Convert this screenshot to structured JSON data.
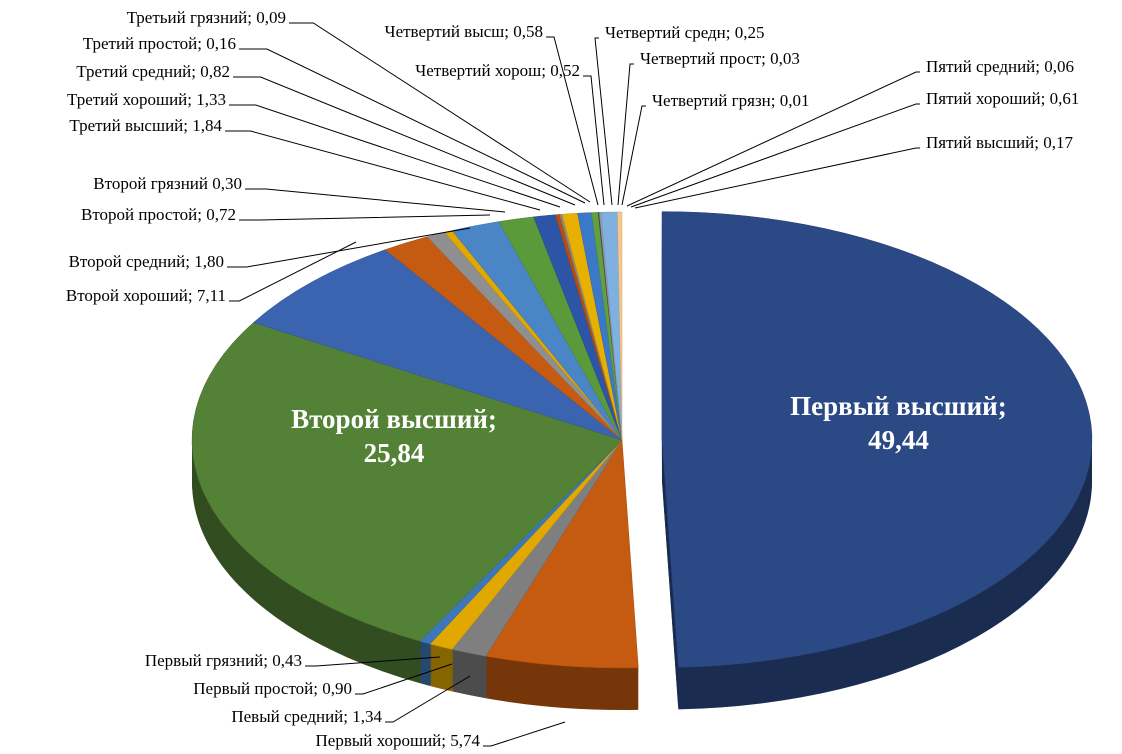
{
  "chart_data": {
    "type": "pie",
    "values": [
      49.44,
      5.74,
      1.34,
      0.9,
      0.43,
      25.84,
      7.11,
      1.8,
      0.72,
      0.3,
      1.84,
      1.33,
      0.82,
      0.16,
      0.09,
      0.58,
      0.52,
      0.25,
      0.03,
      0.01,
      0.06,
      0.61,
      0.17
    ],
    "value_labels": [
      "Первый высший; 49,44",
      "Первый хороший; 5,74",
      "Певый средний; 1,34",
      "Первый простой; 0,90",
      "Первый грязний; 0,43",
      "Второй высший; 25,84",
      "Второй хороший; 7,11",
      "Второй средний; 1,80",
      "Второй простой; 0,72",
      "Второй грязний 0,30",
      "Третий высший; 1,84",
      "Третий хороший; 1,33",
      "Третий средний; 0,82",
      "Третий простой; 0,16",
      "Третьий грязний; 0,09",
      "Четвертий высш; 0,58",
      "Четвертий хорош; 0,52",
      "Четвертий средн; 0,25",
      "Четвертий прост; 0,03",
      "Четвертий грязн; 0,01",
      "Пятий средний; 0,06",
      "Пятий хороший; 0,61",
      "Пятий  высший; 0,17"
    ],
    "colors": [
      "#2b4a85",
      "#c55a11",
      "#7f7f7f",
      "#e0a800",
      "#3c78b8",
      "#538135",
      "#3a64b0",
      "#c55a11",
      "#8f8f8f",
      "#e0a800",
      "#4a86c5",
      "#5a9a3a",
      "#2c55a8",
      "#b54e10",
      "#8a8a8a",
      "#e8b000",
      "#3c78c8",
      "#60a040",
      "#2b4a85",
      "#c55a11",
      "#a0a0a0",
      "#7fb0e0",
      "#f5c88a"
    ]
  }
}
